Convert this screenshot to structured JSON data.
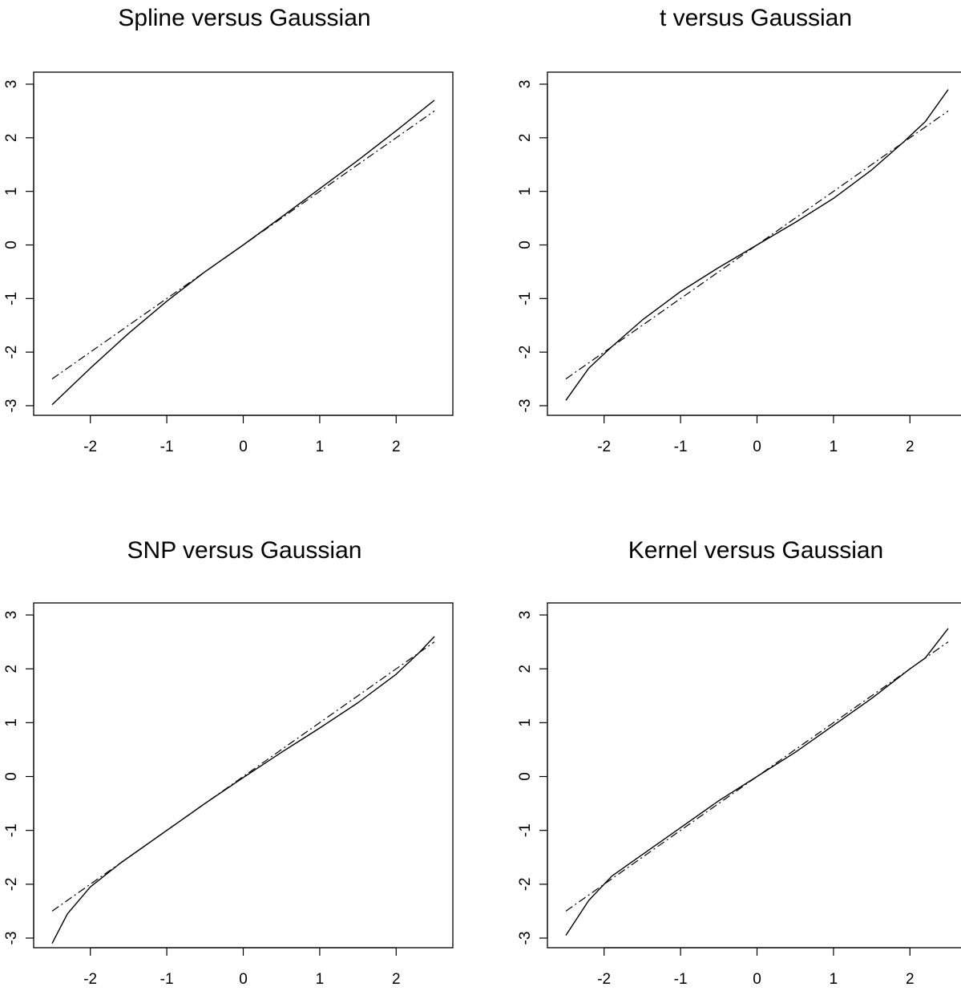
{
  "chart_data": [
    {
      "type": "line",
      "title": "Spline versus Gaussian",
      "xlim": [
        -2.5,
        2.5
      ],
      "ylim": [
        -3,
        3
      ],
      "xticks": [
        -2,
        -1,
        0,
        1,
        2
      ],
      "xtick_labels": [
        "-2",
        "-1",
        "0",
        "1",
        "2"
      ],
      "yticks": [
        -3,
        -2,
        -1,
        0,
        1,
        2,
        3
      ],
      "ytick_labels": [
        "-3",
        "-2",
        "-1",
        "0",
        "1",
        "2",
        "3"
      ],
      "series": [
        {
          "style": "solid",
          "x": [
            -2.5,
            -2.0,
            -1.5,
            -1.0,
            -0.5,
            0.0,
            0.5,
            1.0,
            1.5,
            2.0,
            2.5
          ],
          "y": [
            -2.98,
            -2.3,
            -1.65,
            -1.05,
            -0.5,
            0.0,
            0.52,
            1.05,
            1.58,
            2.13,
            2.7
          ]
        },
        {
          "style": "dashdot",
          "x": [
            -2.5,
            2.5
          ],
          "y": [
            -2.5,
            2.5
          ]
        }
      ]
    },
    {
      "type": "line",
      "title": "t versus Gaussian",
      "xlim": [
        -2.5,
        2.5
      ],
      "ylim": [
        -3,
        3
      ],
      "xticks": [
        -2,
        -1,
        0,
        1,
        2
      ],
      "xtick_labels": [
        "-2",
        "-1",
        "0",
        "1",
        "2"
      ],
      "yticks": [
        -3,
        -2,
        -1,
        0,
        1,
        2,
        3
      ],
      "ytick_labels": [
        "-3",
        "-2",
        "-1",
        "0",
        "1",
        "2",
        "3"
      ],
      "series": [
        {
          "style": "solid",
          "x": [
            -2.5,
            -2.2,
            -1.9,
            -1.5,
            -1.0,
            -0.5,
            0.0,
            0.5,
            1.0,
            1.5,
            1.9,
            2.2,
            2.5
          ],
          "y": [
            -2.9,
            -2.3,
            -1.9,
            -1.4,
            -0.87,
            -0.42,
            0.0,
            0.42,
            0.87,
            1.4,
            1.9,
            2.3,
            2.9
          ]
        },
        {
          "style": "dashdot",
          "x": [
            -2.5,
            2.5
          ],
          "y": [
            -2.5,
            2.5
          ]
        }
      ]
    },
    {
      "type": "line",
      "title": "SNP versus Gaussian",
      "xlim": [
        -2.5,
        2.5
      ],
      "ylim": [
        -3,
        3
      ],
      "xticks": [
        -2,
        -1,
        0,
        1,
        2
      ],
      "xtick_labels": [
        "-2",
        "-1",
        "0",
        "1",
        "2"
      ],
      "yticks": [
        -3,
        -2,
        -1,
        0,
        1,
        2,
        3
      ],
      "ytick_labels": [
        "-3",
        "-2",
        "-1",
        "0",
        "1",
        "2",
        "3"
      ],
      "series": [
        {
          "style": "solid",
          "x": [
            -2.5,
            -2.3,
            -2.0,
            -1.6,
            -1.0,
            -0.5,
            0.0,
            0.5,
            1.0,
            1.5,
            2.0,
            2.3,
            2.5
          ],
          "y": [
            -3.1,
            -2.55,
            -2.05,
            -1.6,
            -1.0,
            -0.5,
            -0.02,
            0.45,
            0.9,
            1.37,
            1.9,
            2.3,
            2.6
          ]
        },
        {
          "style": "dashdot",
          "x": [
            -2.5,
            2.5
          ],
          "y": [
            -2.5,
            2.5
          ]
        }
      ]
    },
    {
      "type": "line",
      "title": "Kernel versus Gaussian",
      "xlim": [
        -2.5,
        2.5
      ],
      "ylim": [
        -3,
        3
      ],
      "xticks": [
        -2,
        -1,
        0,
        1,
        2
      ],
      "xtick_labels": [
        "-2",
        "-1",
        "0",
        "1",
        "2"
      ],
      "yticks": [
        -3,
        -2,
        -1,
        0,
        1,
        2,
        3
      ],
      "ytick_labels": [
        "-3",
        "-2",
        "-1",
        "0",
        "1",
        "2",
        "3"
      ],
      "series": [
        {
          "style": "solid",
          "x": [
            -2.5,
            -2.2,
            -1.9,
            -1.6,
            -1.0,
            -0.5,
            0.0,
            0.5,
            1.0,
            1.5,
            2.0,
            2.2,
            2.5
          ],
          "y": [
            -2.95,
            -2.3,
            -1.85,
            -1.55,
            -0.95,
            -0.45,
            0.0,
            0.45,
            0.95,
            1.45,
            2.0,
            2.2,
            2.75
          ]
        },
        {
          "style": "dashdot",
          "x": [
            -2.5,
            2.5
          ],
          "y": [
            -2.5,
            2.5
          ]
        }
      ]
    }
  ]
}
